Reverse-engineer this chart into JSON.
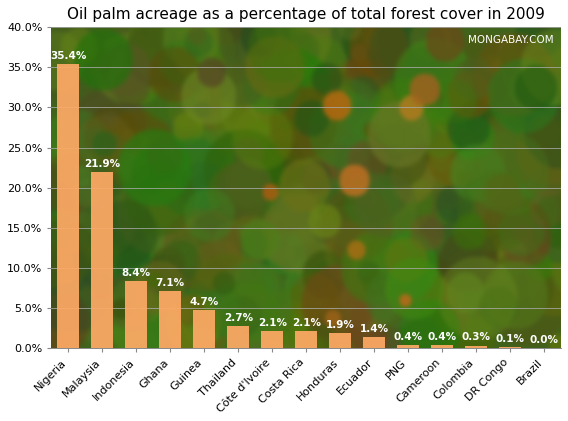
{
  "title": "Oil palm acreage as a percentage of total forest cover in 2009",
  "watermark": "MONGABAY.COM",
  "categories": [
    "Nigeria",
    "Malaysia",
    "Indonesia",
    "Ghana",
    "Guinea",
    "Thailand",
    "Côte d'Ivoire",
    "Costa Rica",
    "Honduras",
    "Ecuador",
    "PNG",
    "Cameroon",
    "Colombia",
    "DR Congo",
    "Brazil"
  ],
  "values": [
    35.4,
    21.9,
    8.4,
    7.1,
    4.7,
    2.7,
    2.1,
    2.1,
    1.9,
    1.4,
    0.4,
    0.4,
    0.3,
    0.1,
    0.0
  ],
  "labels": [
    "35.4%",
    "21.9%",
    "8.4%",
    "7.1%",
    "4.7%",
    "2.7%",
    "2.1%",
    "2.1%",
    "1.9%",
    "1.4%",
    "0.4%",
    "0.4%",
    "0.3%",
    "0.1%",
    "0.0%"
  ],
  "bar_color": "#FFAA66",
  "ylim": [
    0,
    40
  ],
  "yticks": [
    0,
    5,
    10,
    15,
    20,
    25,
    30,
    35,
    40
  ],
  "ytick_labels": [
    "0.0%",
    "5.0%",
    "10.0%",
    "15.0%",
    "20.0%",
    "25.0%",
    "30.0%",
    "35.0%",
    "40.0%"
  ],
  "label_color": "white",
  "title_fontsize": 11,
  "tick_fontsize": 8,
  "label_fontsize": 7.5,
  "watermark_fontsize": 7.5,
  "grid_color": "#aaaaaa",
  "grid_alpha": 0.8
}
